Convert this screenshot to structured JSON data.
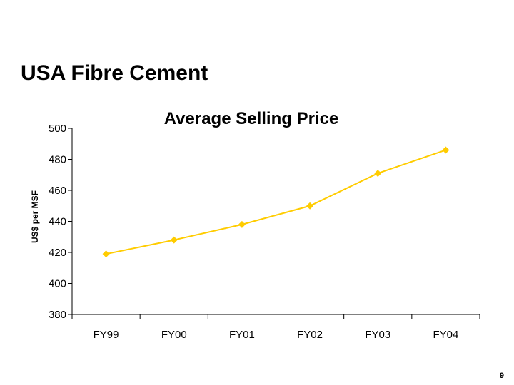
{
  "slide": {
    "title": "USA Fibre Cement",
    "page_number": "9"
  },
  "colors": {
    "series": "#FFCC00",
    "axis": "#000000"
  },
  "chart_data": {
    "type": "line",
    "title": "Average Selling Price",
    "xlabel": "",
    "ylabel": "US$ per MSF",
    "categories": [
      "FY99",
      "FY00",
      "FY01",
      "FY02",
      "FY03",
      "FY04"
    ],
    "series": [
      {
        "values": [
          419,
          428,
          438,
          450,
          471,
          486
        ],
        "marker": "diamond"
      }
    ],
    "ylim": [
      380,
      500
    ],
    "yticks": [
      380,
      400,
      420,
      440,
      460,
      480,
      500
    ],
    "grid": false,
    "legend": "none"
  }
}
